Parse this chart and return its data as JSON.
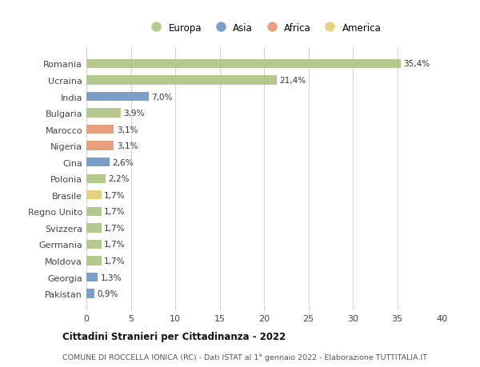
{
  "categories": [
    "Romania",
    "Ucraina",
    "India",
    "Bulgaria",
    "Marocco",
    "Nigeria",
    "Cina",
    "Polonia",
    "Brasile",
    "Regno Unito",
    "Svizzera",
    "Germania",
    "Moldova",
    "Georgia",
    "Pakistan"
  ],
  "values": [
    35.4,
    21.4,
    7.0,
    3.9,
    3.1,
    3.1,
    2.6,
    2.2,
    1.7,
    1.7,
    1.7,
    1.7,
    1.7,
    1.3,
    0.9
  ],
  "labels": [
    "35,4%",
    "21,4%",
    "7,0%",
    "3,9%",
    "3,1%",
    "3,1%",
    "2,6%",
    "2,2%",
    "1,7%",
    "1,7%",
    "1,7%",
    "1,7%",
    "1,7%",
    "1,3%",
    "0,9%"
  ],
  "continents": [
    "Europa",
    "Europa",
    "Asia",
    "Europa",
    "Africa",
    "Africa",
    "Asia",
    "Europa",
    "America",
    "Europa",
    "Europa",
    "Europa",
    "Europa",
    "Asia",
    "Asia"
  ],
  "continent_colors": {
    "Europa": "#b5c98e",
    "Asia": "#7b9fc7",
    "Africa": "#e8a080",
    "America": "#e8d080"
  },
  "legend_order": [
    "Europa",
    "Asia",
    "Africa",
    "America"
  ],
  "xlim": [
    0,
    40
  ],
  "xticks": [
    0,
    5,
    10,
    15,
    20,
    25,
    30,
    35,
    40
  ],
  "title": "Cittadini Stranieri per Cittadinanza - 2022",
  "subtitle": "COMUNE DI ROCCELLA IONICA (RC) - Dati ISTAT al 1° gennaio 2022 - Elaborazione TUTTITALIA.IT",
  "background_color": "#ffffff",
  "grid_color": "#d0d0d0",
  "bar_height": 0.55,
  "label_fontsize": 7.5,
  "ytick_fontsize": 8.0,
  "xtick_fontsize": 8.0
}
